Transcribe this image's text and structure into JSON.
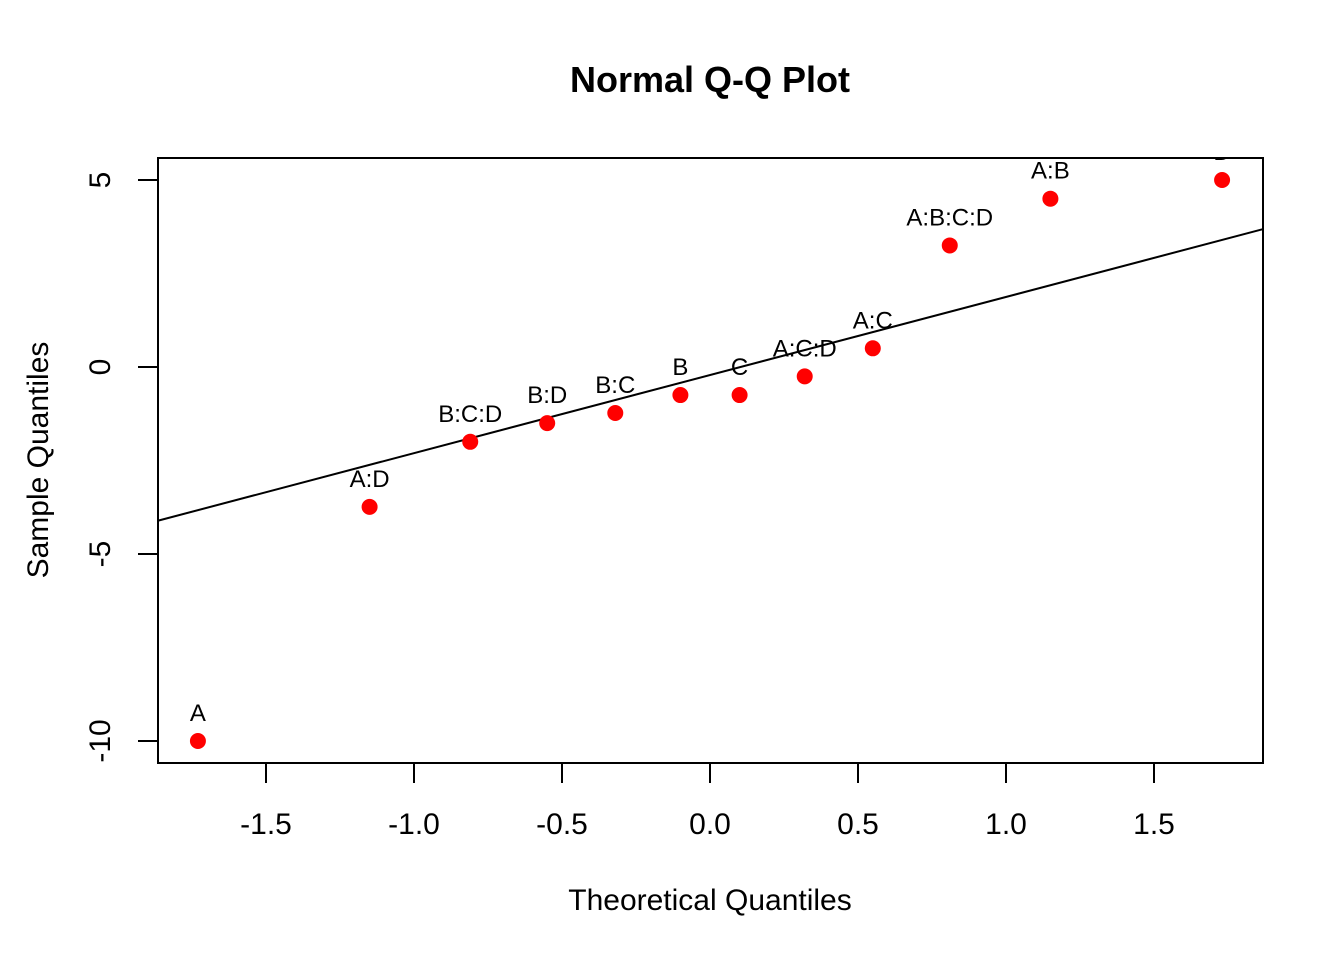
{
  "chart_data": {
    "type": "scatter",
    "title": "Normal Q-Q Plot",
    "xlabel": "Theoretical Quantiles",
    "ylabel": "Sample Quantiles",
    "xlim": [
      -1.87,
      1.87
    ],
    "ylim": [
      -10.6,
      5.6
    ],
    "xticks": [
      -1.5,
      -1.0,
      -0.5,
      0.0,
      0.5,
      1.0,
      1.5
    ],
    "xtick_labels": [
      "-1.5",
      "-1.0",
      "-0.5",
      "0.0",
      "0.5",
      "1.0",
      "1.5"
    ],
    "yticks": [
      -10,
      -5,
      0,
      5
    ],
    "ytick_labels": [
      "-10",
      "-5",
      "0",
      "5"
    ],
    "grid": false,
    "point_color": "#ff0000",
    "points": [
      {
        "label": "A",
        "x": -1.73,
        "y": -10.0
      },
      {
        "label": "A:D",
        "x": -1.15,
        "y": -3.74
      },
      {
        "label": "B:C:D",
        "x": -0.81,
        "y": -2.0
      },
      {
        "label": "B:D",
        "x": -0.55,
        "y": -1.5
      },
      {
        "label": "B:C",
        "x": -0.32,
        "y": -1.23
      },
      {
        "label": "B",
        "x": -0.1,
        "y": -0.75
      },
      {
        "label": "C",
        "x": 0.1,
        "y": -0.75
      },
      {
        "label": "A:C:D",
        "x": 0.32,
        "y": -0.25
      },
      {
        "label": "A:C",
        "x": 0.55,
        "y": 0.5
      },
      {
        "label": "A:B:C:D",
        "x": 0.81,
        "y": 3.25
      },
      {
        "label": "A:B",
        "x": 1.15,
        "y": 4.5
      },
      {
        "label": "D",
        "x": 1.73,
        "y": 5.0
      }
    ],
    "reference_line": {
      "x1": -1.87,
      "y1": -4.12,
      "x2": 1.87,
      "y2": 3.69
    }
  }
}
